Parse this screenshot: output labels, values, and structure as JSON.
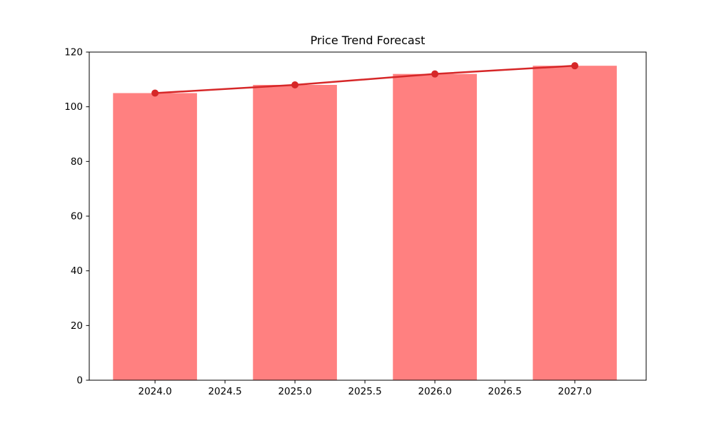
{
  "figure": {
    "background": "#ffffff"
  },
  "chart_data": {
    "type": "bar",
    "title": "Price Trend Forecast",
    "x": [
      2024,
      2025,
      2026,
      2027
    ],
    "series": [
      {
        "name": "price-bars",
        "type": "bar",
        "values": [
          105,
          108,
          112,
          115
        ],
        "color": "#ff8080"
      },
      {
        "name": "trend-line",
        "type": "line",
        "values": [
          105,
          108,
          112,
          115
        ],
        "color": "#d62728",
        "marker": "circle",
        "marker_size": 5,
        "line_width": 2.5
      }
    ],
    "bar_width": 0.6,
    "xlim": [
      2023.53,
      2027.51
    ],
    "ylim": [
      0,
      120
    ],
    "xticks": [
      2024.0,
      2024.5,
      2025.0,
      2025.5,
      2026.0,
      2026.5,
      2027.0
    ],
    "xtick_labels": [
      "2024.0",
      "2024.5",
      "2025.0",
      "2025.5",
      "2026.0",
      "2026.5",
      "2027.0"
    ],
    "yticks": [
      0,
      20,
      40,
      60,
      80,
      100,
      120
    ],
    "ytick_labels": [
      "0",
      "20",
      "40",
      "60",
      "80",
      "100",
      "120"
    ],
    "xlabel": "",
    "ylabel": "",
    "grid": false,
    "legend": null,
    "axis_color": "#000000"
  }
}
